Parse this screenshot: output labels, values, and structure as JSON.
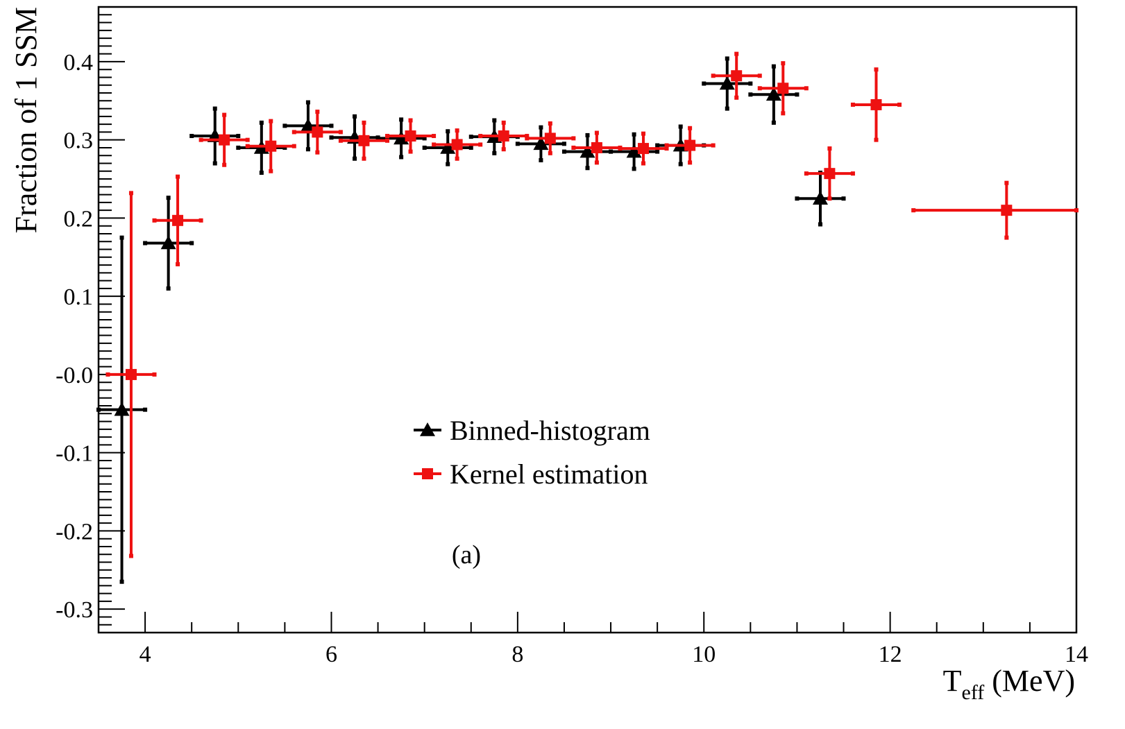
{
  "chart_data": {
    "type": "scatter",
    "title": "",
    "xlabel_main": "T",
    "xlabel_sub": "eff",
    "xlabel_unit": " (MeV)",
    "ylabel": "Fraction of 1 SSM",
    "xlim": [
      3.5,
      14
    ],
    "ylim": [
      -0.33,
      0.47
    ],
    "x_ticks": [
      {
        "value": 4,
        "label": "4"
      },
      {
        "value": 6,
        "label": "6"
      },
      {
        "value": 8,
        "label": "8"
      },
      {
        "value": 10,
        "label": "10"
      },
      {
        "value": 12,
        "label": "12"
      },
      {
        "value": 14,
        "label": "14"
      }
    ],
    "y_ticks": [
      {
        "value": -0.3,
        "label": "-0.3"
      },
      {
        "value": -0.2,
        "label": "-0.2"
      },
      {
        "value": -0.1,
        "label": "-0.1"
      },
      {
        "value": 0.0,
        "label": "-0.0"
      },
      {
        "value": 0.1,
        "label": "0.1"
      },
      {
        "value": 0.2,
        "label": "0.2"
      },
      {
        "value": 0.3,
        "label": "0.3"
      },
      {
        "value": 0.4,
        "label": "0.4"
      }
    ],
    "grid": false,
    "legend_position": "center",
    "annotation": "(a)",
    "series": [
      {
        "name": "Binned-histogram",
        "color": "#000000",
        "marker": "triangle",
        "points": [
          {
            "x": 3.75,
            "y": -0.045,
            "xerr": 0.25,
            "yerr_low": 0.22,
            "yerr_high": 0.22
          },
          {
            "x": 4.25,
            "y": 0.168,
            "xerr": 0.25,
            "yerr_low": 0.058,
            "yerr_high": 0.058
          },
          {
            "x": 4.75,
            "y": 0.305,
            "xerr": 0.25,
            "yerr_low": 0.035,
            "yerr_high": 0.035
          },
          {
            "x": 5.25,
            "y": 0.29,
            "xerr": 0.25,
            "yerr_low": 0.032,
            "yerr_high": 0.032
          },
          {
            "x": 5.75,
            "y": 0.318,
            "xerr": 0.25,
            "yerr_low": 0.03,
            "yerr_high": 0.03
          },
          {
            "x": 6.25,
            "y": 0.303,
            "xerr": 0.25,
            "yerr_low": 0.027,
            "yerr_high": 0.027
          },
          {
            "x": 6.75,
            "y": 0.302,
            "xerr": 0.25,
            "yerr_low": 0.024,
            "yerr_high": 0.024
          },
          {
            "x": 7.25,
            "y": 0.29,
            "xerr": 0.25,
            "yerr_low": 0.021,
            "yerr_high": 0.021
          },
          {
            "x": 7.75,
            "y": 0.304,
            "xerr": 0.25,
            "yerr_low": 0.021,
            "yerr_high": 0.021
          },
          {
            "x": 8.25,
            "y": 0.295,
            "xerr": 0.25,
            "yerr_low": 0.021,
            "yerr_high": 0.021
          },
          {
            "x": 8.75,
            "y": 0.285,
            "xerr": 0.25,
            "yerr_low": 0.021,
            "yerr_high": 0.021
          },
          {
            "x": 9.25,
            "y": 0.285,
            "xerr": 0.25,
            "yerr_low": 0.022,
            "yerr_high": 0.022
          },
          {
            "x": 9.75,
            "y": 0.293,
            "xerr": 0.25,
            "yerr_low": 0.024,
            "yerr_high": 0.024
          },
          {
            "x": 10.25,
            "y": 0.372,
            "xerr": 0.25,
            "yerr_low": 0.032,
            "yerr_high": 0.032
          },
          {
            "x": 10.75,
            "y": 0.358,
            "xerr": 0.25,
            "yerr_low": 0.036,
            "yerr_high": 0.036
          },
          {
            "x": 11.25,
            "y": 0.225,
            "xerr": 0.25,
            "yerr_low": 0.033,
            "yerr_high": 0.033
          }
        ]
      },
      {
        "name": "Kernel estimation",
        "color": "#ee1111",
        "marker": "square",
        "points": [
          {
            "x": 3.85,
            "y": 0.0,
            "xerr": 0.25,
            "yerr_low": 0.232,
            "yerr_high": 0.232
          },
          {
            "x": 4.35,
            "y": 0.197,
            "xerr": 0.25,
            "yerr_low": 0.056,
            "yerr_high": 0.056
          },
          {
            "x": 4.85,
            "y": 0.3,
            "xerr": 0.25,
            "yerr_low": 0.032,
            "yerr_high": 0.032
          },
          {
            "x": 5.35,
            "y": 0.292,
            "xerr": 0.25,
            "yerr_low": 0.032,
            "yerr_high": 0.032
          },
          {
            "x": 5.85,
            "y": 0.31,
            "xerr": 0.25,
            "yerr_low": 0.026,
            "yerr_high": 0.026
          },
          {
            "x": 6.35,
            "y": 0.299,
            "xerr": 0.25,
            "yerr_low": 0.023,
            "yerr_high": 0.023
          },
          {
            "x": 6.85,
            "y": 0.305,
            "xerr": 0.25,
            "yerr_low": 0.02,
            "yerr_high": 0.02
          },
          {
            "x": 7.35,
            "y": 0.294,
            "xerr": 0.25,
            "yerr_low": 0.018,
            "yerr_high": 0.018
          },
          {
            "x": 7.85,
            "y": 0.305,
            "xerr": 0.25,
            "yerr_low": 0.017,
            "yerr_high": 0.017
          },
          {
            "x": 8.35,
            "y": 0.302,
            "xerr": 0.25,
            "yerr_low": 0.019,
            "yerr_high": 0.019
          },
          {
            "x": 8.85,
            "y": 0.29,
            "xerr": 0.25,
            "yerr_low": 0.019,
            "yerr_high": 0.019
          },
          {
            "x": 9.35,
            "y": 0.289,
            "xerr": 0.25,
            "yerr_low": 0.019,
            "yerr_high": 0.019
          },
          {
            "x": 9.85,
            "y": 0.293,
            "xerr": 0.25,
            "yerr_low": 0.022,
            "yerr_high": 0.022
          },
          {
            "x": 10.35,
            "y": 0.382,
            "xerr": 0.25,
            "yerr_low": 0.028,
            "yerr_high": 0.028
          },
          {
            "x": 10.85,
            "y": 0.366,
            "xerr": 0.25,
            "yerr_low": 0.032,
            "yerr_high": 0.032
          },
          {
            "x": 11.35,
            "y": 0.257,
            "xerr": 0.25,
            "yerr_low": 0.032,
            "yerr_high": 0.032
          },
          {
            "x": 11.85,
            "y": 0.345,
            "xerr": 0.25,
            "yerr_low": 0.045,
            "yerr_high": 0.045
          },
          {
            "x": 13.25,
            "y": 0.21,
            "xerr": 1.0,
            "yerr_low": 0.035,
            "yerr_high": 0.035
          }
        ]
      }
    ]
  }
}
